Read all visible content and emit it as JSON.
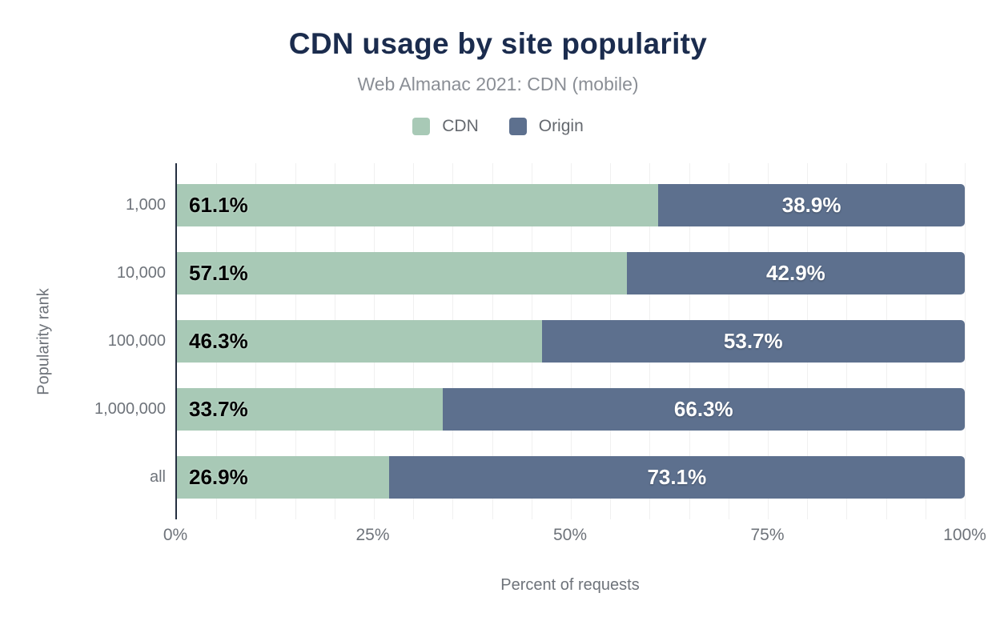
{
  "chart_data": {
    "type": "bar",
    "orientation": "horizontal",
    "stacked": true,
    "title": "CDN usage by site popularity",
    "subtitle": "Web Almanac 2021: CDN (mobile)",
    "xlabel": "Percent of requests",
    "ylabel": "Popularity rank",
    "categories": [
      "1,000",
      "10,000",
      "100,000",
      "1,000,000",
      "all"
    ],
    "series": [
      {
        "name": "CDN",
        "color": "#a8c9b6",
        "label_color": "#000000",
        "values": [
          61.1,
          57.1,
          46.3,
          33.7,
          26.9
        ],
        "labels": [
          "61.1%",
          "57.1%",
          "46.3%",
          "33.7%",
          "26.9%"
        ]
      },
      {
        "name": "Origin",
        "color": "#5d708e",
        "label_color": "#ffffff",
        "values": [
          38.9,
          42.9,
          53.7,
          66.3,
          73.1
        ],
        "labels": [
          "38.9%",
          "42.9%",
          "53.7%",
          "66.3%",
          "73.1%"
        ]
      }
    ],
    "xlim": [
      0,
      100
    ],
    "x_ticks": [
      {
        "value": 0,
        "label": "0%"
      },
      {
        "value": 25,
        "label": "25%"
      },
      {
        "value": 50,
        "label": "50%"
      },
      {
        "value": 75,
        "label": "75%"
      },
      {
        "value": 100,
        "label": "100%"
      }
    ],
    "grid": {
      "show": true,
      "axis": "x",
      "minor_step_percent": 5
    },
    "legend_position": "top"
  },
  "style": {
    "background": "#ffffff",
    "title_color": "#1b2c4e",
    "subtitle_color": "#8a8e95",
    "legend_text_color": "#65696f",
    "axis_text_color": "#6e737a",
    "axis_line_color": "#242e40",
    "gridline_color": "#f0f0f0"
  }
}
